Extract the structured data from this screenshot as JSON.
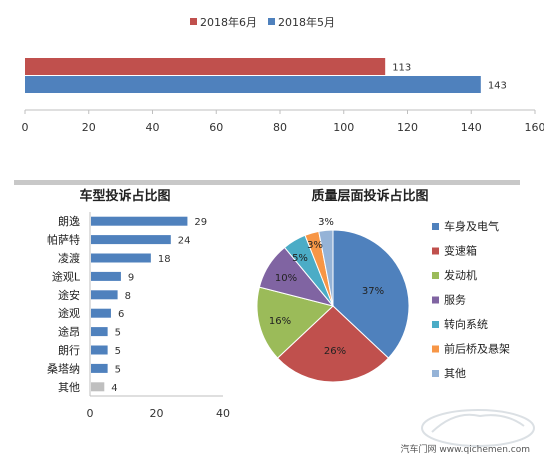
{
  "chart_data": [
    {
      "type": "bar",
      "orientation": "horizontal",
      "title": "",
      "categories": [
        ""
      ],
      "series": [
        {
          "name": "2018年6月",
          "color": "#c0504d",
          "values": [
            113
          ]
        },
        {
          "name": "2018年5月",
          "color": "#4f81bd",
          "values": [
            143
          ]
        }
      ],
      "xlim": [
        0,
        160
      ],
      "xticks": [
        0,
        20,
        40,
        60,
        80,
        100,
        120,
        140,
        160
      ],
      "legend": "top-center"
    },
    {
      "type": "bar",
      "orientation": "horizontal",
      "title": "车型投诉占比图",
      "categories": [
        "朗逸",
        "帕萨特",
        "凌渡",
        "途观L",
        "途安",
        "途观",
        "途昂",
        "朗行",
        "桑塔纳",
        "其他"
      ],
      "values": [
        29,
        24,
        18,
        9,
        8,
        6,
        5,
        5,
        5,
        4
      ],
      "colors": [
        "#4f81bd",
        "#4f81bd",
        "#4f81bd",
        "#4f81bd",
        "#4f81bd",
        "#4f81bd",
        "#4f81bd",
        "#4f81bd",
        "#4f81bd",
        "#bfbfbf"
      ],
      "xlim": [
        0,
        40
      ],
      "xticks": [
        0,
        20,
        40
      ]
    },
    {
      "type": "pie",
      "title": "质量层面投诉占比图",
      "labels": [
        "车身及电气",
        "变速箱",
        "发动机",
        "服务",
        "转向系统",
        "前后桥及悬架",
        "其他"
      ],
      "values": [
        37,
        26,
        16,
        10,
        5,
        3,
        3
      ],
      "value_labels": [
        "37%",
        "26%",
        "16%",
        "10%",
        "5%",
        "3%",
        "3%"
      ],
      "colors": [
        "#4f81bd",
        "#c0504d",
        "#9bbb59",
        "#8064a2",
        "#4bacc6",
        "#f79646",
        "#95b3d7"
      ],
      "legend": "right"
    }
  ],
  "watermark": {
    "text": "汽车门网 www.qichemen.com"
  }
}
